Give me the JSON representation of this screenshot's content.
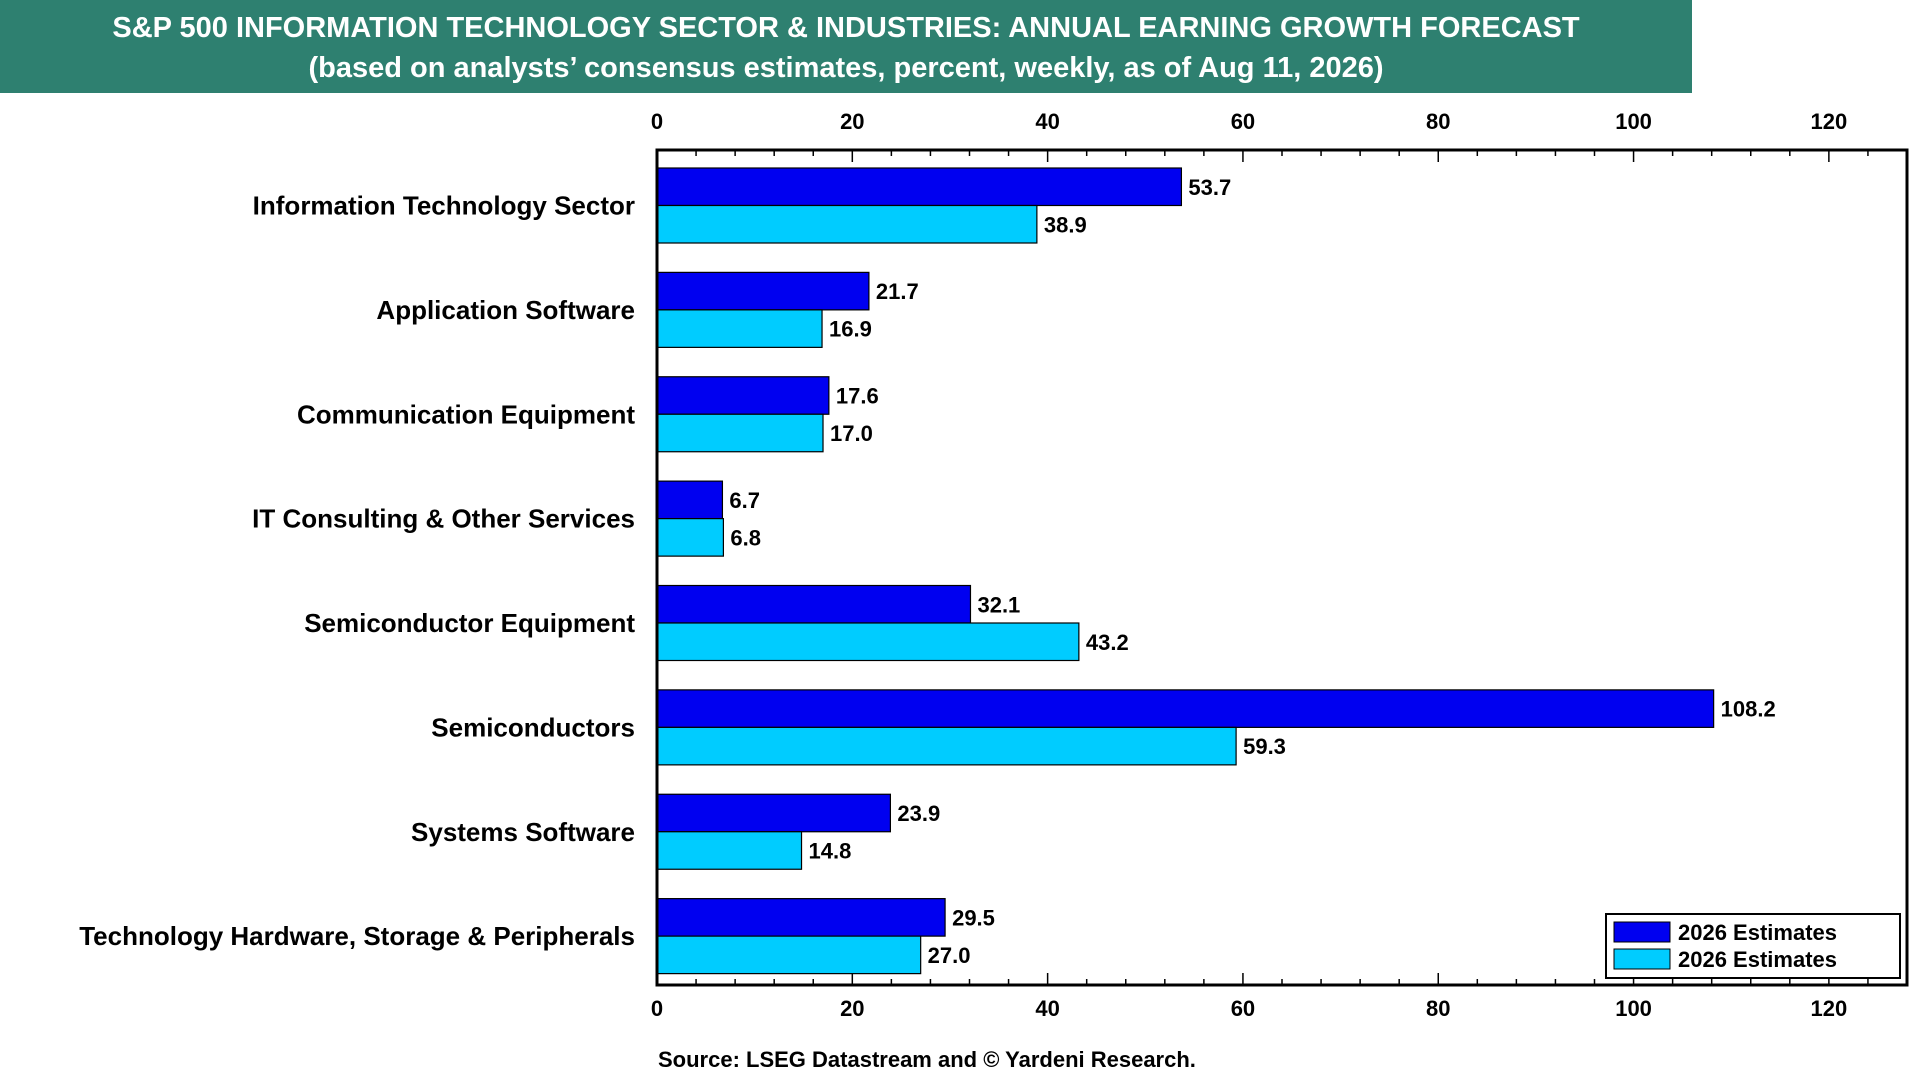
{
  "title": {
    "line1": "S&P 500 INFORMATION TECHNOLOGY SECTOR & INDUSTRIES: ANNUAL EARNING GROWTH FORECAST",
    "line2": "(based on analysts’ consensus estimates, percent, weekly, as of Aug 11, 2026)"
  },
  "source": "Source: LSEG Datastream and © Yardeni Research.",
  "colors": {
    "banner": "#2e8070",
    "series_dark": "#0000f0",
    "series_light": "#00ccff"
  },
  "chart_data": {
    "type": "bar",
    "orientation": "horizontal",
    "categories": [
      "Information Technology Sector",
      "Application Software",
      "Communication Equipment",
      "IT Consulting & Other Services",
      "Semiconductor Equipment",
      "Semiconductors",
      "Systems Software",
      "Technology Hardware, Storage & Peripherals"
    ],
    "series": [
      {
        "name": "2026 Estimates",
        "color": "#0000f0",
        "values": [
          53.7,
          21.7,
          17.6,
          6.7,
          32.1,
          108.2,
          23.9,
          29.5
        ],
        "labels": [
          "53.7",
          "21.7",
          "17.6",
          "6.7",
          "32.1",
          "108.2",
          "23.9",
          "29.5"
        ]
      },
      {
        "name": "2026 Estimates",
        "color": "#00ccff",
        "values": [
          38.9,
          16.9,
          17.0,
          6.8,
          43.2,
          59.3,
          14.8,
          27.0
        ],
        "labels": [
          "38.9",
          "16.9",
          "17.0",
          "6.8",
          "43.2",
          "59.3",
          "14.8",
          "27.0"
        ]
      }
    ],
    "xlim": [
      0,
      128
    ],
    "xticks": [
      0,
      20,
      40,
      60,
      80,
      100,
      120
    ],
    "xtick_labels": [
      "0",
      "20",
      "40",
      "60",
      "80",
      "100",
      "120"
    ],
    "minor_tick_step": 4,
    "grid": false,
    "legend_position": "bottom-right",
    "xlabel": "",
    "ylabel": ""
  }
}
